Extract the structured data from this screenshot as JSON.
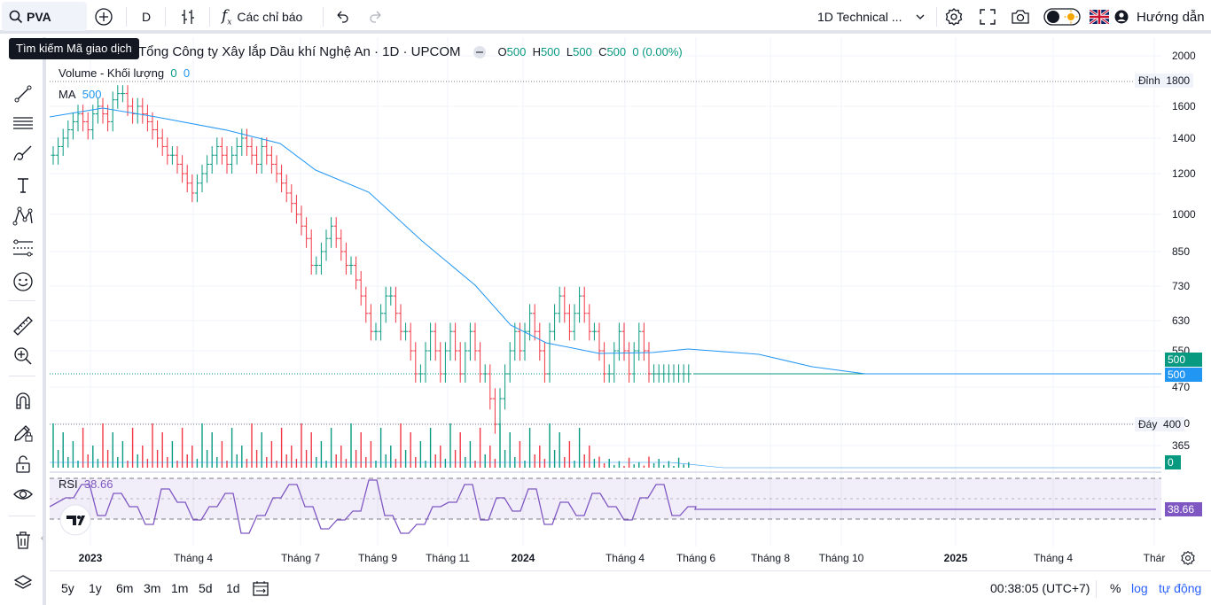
{
  "topbar": {
    "symbol": "PVA",
    "interval": "D",
    "indicators_label": "Các chỉ báo",
    "layout_name": "1D Technical ...",
    "help_label": "Hướng dẫn"
  },
  "tooltip": "Tìm kiếm Mã giao dịch",
  "legend": {
    "title": "Tổng Công ty Xây lắp Dầu khí Nghệ An · 1D · UPCOM",
    "o_label": "O",
    "o_val": "500",
    "h_label": "H",
    "h_val": "500",
    "l_label": "L",
    "l_val": "500",
    "c_label": "C",
    "c_val": "500",
    "change": "0 (0.00%)",
    "volume_label": "Volume - Khối lượng",
    "volume_v1": "0",
    "volume_v2": "0",
    "ma_label": "MA",
    "ma_val": "500",
    "rsi_label": "RSI",
    "rsi_val": "38.66"
  },
  "price_axis": {
    "ticks": [
      "2000",
      "1600",
      "1400",
      "1200",
      "1000",
      "850",
      "730",
      "630",
      "550",
      "470",
      "410",
      "365"
    ],
    "high_label": "Đỉnh",
    "high_val": "1800",
    "low_label": "Đáy",
    "low_val": "400",
    "last_price": "500",
    "ma_price": "500",
    "vol_badge": "0",
    "rsi_badge": "38.66"
  },
  "time_axis": [
    "2023",
    "Tháng 4",
    "Tháng 7",
    "Tháng 9",
    "Tháng 11",
    "2024",
    "Tháng 4",
    "Tháng 6",
    "Tháng 8",
    "Tháng 10",
    "2025",
    "Tháng 4",
    "Thár"
  ],
  "bottombar": {
    "ranges": [
      "5y",
      "1y",
      "6m",
      "3m",
      "1m",
      "5d",
      "1d"
    ],
    "clock": "00:38:05 (UTC+7)",
    "pct": "%",
    "log": "log",
    "auto": "tự động"
  },
  "colors": {
    "up": "#089981",
    "down": "#f23645",
    "ma": "#2196f3",
    "rsi": "#7e57c2",
    "accent": "#2962ff"
  }
}
